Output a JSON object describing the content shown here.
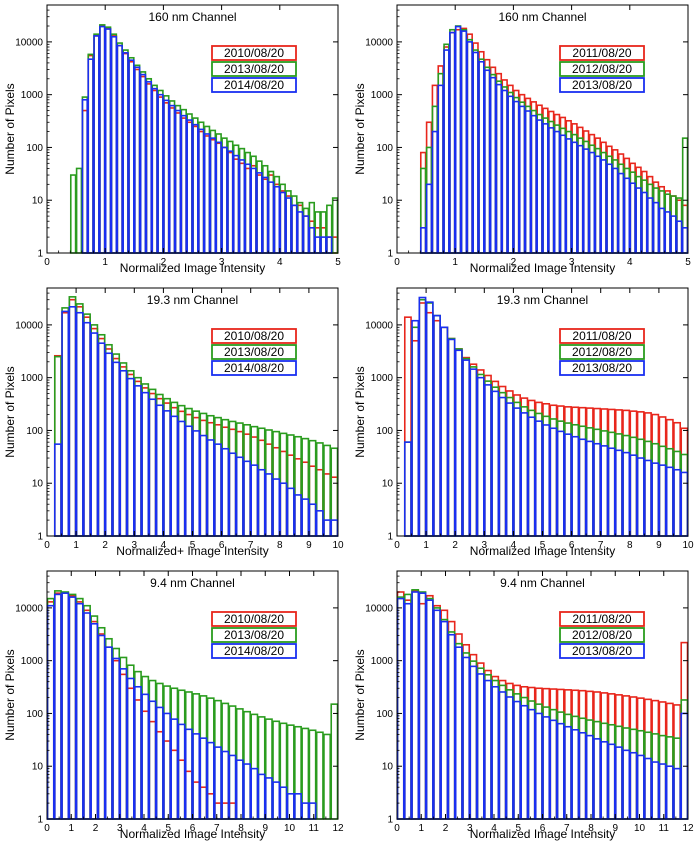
{
  "chart_data": [
    {
      "type": "bar",
      "title": "160 nm Channel",
      "xlabel": "Normalized Image Intensity",
      "ylabel": "Number of Pixels",
      "xlim": [
        0,
        5
      ],
      "ylim": [
        1,
        50000
      ],
      "y_scale": "log",
      "x_ticks": [
        "0",
        "1",
        "2",
        "3",
        "4",
        "5"
      ],
      "y_ticks": [
        "1",
        "10",
        "100",
        "1000",
        "10000"
      ],
      "bin_width": 0.1,
      "x_start": 0.4,
      "legend_position": "upper-right",
      "series": [
        {
          "name": "2010/08/20",
          "color": "#e8261c",
          "values": [
            0,
            0,
            500,
            5500,
            13000,
            20000,
            18000,
            13000,
            8500,
            6000,
            4200,
            3000,
            2200,
            1600,
            1200,
            900,
            700,
            560,
            450,
            360,
            300,
            250,
            200,
            165,
            140,
            120,
            100,
            80,
            60,
            50,
            40,
            45,
            30,
            25,
            30,
            20,
            15,
            12,
            8,
            8,
            5,
            4,
            3,
            3,
            2,
            2
          ]
        },
        {
          "name": "2013/08/20",
          "color": "#2a9c1e",
          "values": [
            30,
            40,
            900,
            5800,
            14000,
            21000,
            19000,
            14000,
            9500,
            7000,
            5000,
            3600,
            2700,
            2000,
            1500,
            1200,
            950,
            760,
            620,
            520,
            430,
            360,
            300,
            250,
            210,
            180,
            150,
            130,
            110,
            95,
            80,
            68,
            55,
            45,
            35,
            28,
            20,
            15,
            12,
            9,
            7,
            9,
            6,
            6,
            8,
            11
          ]
        },
        {
          "name": "2014/08/20",
          "color": "#1a2ff0",
          "values": [
            0,
            0,
            800,
            4700,
            13000,
            19500,
            17500,
            12500,
            8500,
            6200,
            4500,
            3300,
            2400,
            1750,
            1300,
            1000,
            780,
            620,
            500,
            400,
            330,
            270,
            220,
            180,
            150,
            125,
            100,
            85,
            70,
            58,
            48,
            40,
            33,
            27,
            22,
            18,
            14,
            11,
            8,
            6,
            5,
            3,
            2,
            2,
            2,
            1
          ]
        }
      ]
    },
    {
      "type": "bar",
      "title": "160 nm Channel",
      "xlabel": "Normalized Image Intensity",
      "ylabel": "Number of Pixels",
      "xlim": [
        0,
        5
      ],
      "ylim": [
        1,
        50000
      ],
      "y_scale": "log",
      "x_ticks": [
        "0",
        "1",
        "2",
        "3",
        "4",
        "5"
      ],
      "y_ticks": [
        "1",
        "10",
        "100",
        "1000",
        "10000"
      ],
      "bin_width": 0.1,
      "x_start": 0.4,
      "legend_position": "upper-right",
      "series": [
        {
          "name": "2011/08/20",
          "color": "#e8261c",
          "values": [
            80,
            300,
            1500,
            3500,
            8000,
            15000,
            17000,
            18000,
            14000,
            9500,
            6500,
            4600,
            3300,
            2500,
            1900,
            1500,
            1200,
            1000,
            850,
            730,
            630,
            550,
            480,
            420,
            370,
            320,
            280,
            240,
            205,
            175,
            150,
            125,
            105,
            90,
            75,
            62,
            50,
            42,
            35,
            28,
            22,
            18,
            15,
            12,
            10,
            8
          ]
        },
        {
          "name": "2012/08/20",
          "color": "#2a9c1e",
          "values": [
            40,
            100,
            600,
            2500,
            9000,
            17000,
            20000,
            17000,
            11000,
            7000,
            4700,
            3300,
            2400,
            1800,
            1400,
            1100,
            880,
            720,
            600,
            500,
            420,
            360,
            310,
            265,
            230,
            200,
            175,
            150,
            130,
            110,
            95,
            80,
            68,
            58,
            48,
            40,
            34,
            28,
            24,
            20,
            17,
            15,
            13,
            12,
            11,
            150
          ]
        },
        {
          "name": "2013/08/20",
          "color": "#1a2ff0",
          "values": [
            3,
            20,
            200,
            1500,
            7000,
            15000,
            19500,
            16000,
            10000,
            6300,
            4200,
            2900,
            2100,
            1550,
            1200,
            930,
            740,
            600,
            490,
            400,
            330,
            280,
            235,
            200,
            170,
            145,
            125,
            108,
            93,
            80,
            68,
            58,
            48,
            40,
            32,
            26,
            21,
            17,
            14,
            11,
            9,
            7,
            6,
            5,
            4,
            3
          ]
        }
      ]
    },
    {
      "type": "bar",
      "title": "19.3 nm Channel",
      "xlabel": "Normalized+ Image Intensity",
      "ylabel": "Number of Pixels",
      "xlim": [
        0,
        10
      ],
      "ylim": [
        1,
        50000
      ],
      "y_scale": "log",
      "x_ticks": [
        "0",
        "1",
        "2",
        "3",
        "4",
        "5",
        "6",
        "7",
        "8",
        "9",
        "10"
      ],
      "y_ticks": [
        "1",
        "10",
        "100",
        "1000",
        "10000"
      ],
      "bin_width": 0.25,
      "x_start": 0.25,
      "legend_position": "upper-right",
      "series": [
        {
          "name": "2010/08/20",
          "color": "#e8261c",
          "values": [
            2600,
            17000,
            30000,
            22000,
            14000,
            8500,
            5500,
            3500,
            2300,
            1600,
            1150,
            850,
            640,
            500,
            400,
            330,
            270,
            230,
            200,
            175,
            155,
            140,
            128,
            115,
            105,
            95,
            85,
            75,
            65,
            55,
            47,
            40,
            34,
            29,
            25,
            21,
            18,
            15,
            13,
            11
          ]
        },
        {
          "name": "2013/08/20",
          "color": "#2a9c1e",
          "values": [
            2500,
            21000,
            34000,
            25000,
            16000,
            10000,
            6500,
            4200,
            2800,
            1900,
            1350,
            1000,
            760,
            600,
            480,
            400,
            340,
            295,
            260,
            232,
            210,
            190,
            175,
            160,
            148,
            138,
            128,
            118,
            110,
            102,
            95,
            88,
            82,
            76,
            70,
            64,
            58,
            52,
            46,
            40
          ]
        },
        {
          "name": "2014/08/20",
          "color": "#1a2ff0",
          "values": [
            55,
            18000,
            22000,
            17000,
            11000,
            7000,
            4500,
            2900,
            1950,
            1350,
            960,
            700,
            520,
            390,
            300,
            235,
            185,
            148,
            120,
            98,
            80,
            66,
            55,
            45,
            37,
            31,
            26,
            22,
            18,
            15,
            12,
            10,
            8,
            6,
            5,
            4,
            3,
            2,
            2,
            1
          ]
        }
      ]
    },
    {
      "type": "bar",
      "title": "19.3 nm Channel",
      "xlabel": "Normalized Image Intensity",
      "ylabel": "Number of Pixels",
      "xlim": [
        0,
        10
      ],
      "ylim": [
        1,
        50000
      ],
      "y_scale": "log",
      "x_ticks": [
        "0",
        "1",
        "2",
        "3",
        "4",
        "5",
        "6",
        "7",
        "8",
        "9",
        "10"
      ],
      "y_ticks": [
        "1",
        "10",
        "100",
        "1000",
        "10000"
      ],
      "bin_width": 0.25,
      "x_start": 0.25,
      "legend_position": "upper-right",
      "series": [
        {
          "name": "2011/08/20",
          "color": "#e8261c",
          "values": [
            14000,
            5000,
            26000,
            17000,
            12000,
            9000,
            5500,
            3500,
            2400,
            1800,
            1400,
            1100,
            850,
            680,
            560,
            470,
            410,
            370,
            340,
            320,
            300,
            290,
            280,
            275,
            270,
            265,
            260,
            255,
            250,
            245,
            240,
            232,
            225,
            215,
            200,
            180,
            160,
            140,
            110,
            80
          ]
        },
        {
          "name": "2012/08/20",
          "color": "#2a9c1e",
          "values": [
            60,
            9000,
            30000,
            26000,
            15000,
            9000,
            5500,
            3500,
            2300,
            1600,
            1150,
            860,
            660,
            520,
            420,
            340,
            280,
            240,
            210,
            185,
            165,
            150,
            138,
            128,
            120,
            112,
            105,
            98,
            92,
            86,
            80,
            74,
            68,
            62,
            56,
            50,
            45,
            40,
            35,
            30
          ]
        },
        {
          "name": "2013/08/20",
          "color": "#1a2ff0",
          "values": [
            60,
            12000,
            33000,
            27000,
            15000,
            9000,
            5300,
            3300,
            2150,
            1450,
            1000,
            730,
            550,
            420,
            330,
            265,
            215,
            178,
            150,
            127,
            110,
            96,
            85,
            76,
            68,
            62,
            56,
            51,
            46,
            42,
            38,
            34,
            30,
            27,
            24,
            22,
            20,
            18,
            16,
            14
          ]
        }
      ]
    },
    {
      "type": "bar",
      "title": "9.4 nm Channel",
      "xlabel": "Normalized Image Intensity",
      "ylabel": "Number of Pixels",
      "xlim": [
        0,
        12
      ],
      "ylim": [
        1,
        50000
      ],
      "y_scale": "log",
      "x_ticks": [
        "0",
        "1",
        "2",
        "3",
        "4",
        "5",
        "6",
        "7",
        "8",
        "9",
        "10",
        "11",
        "12"
      ],
      "y_ticks": [
        "1",
        "10",
        "100",
        "1000",
        "10000"
      ],
      "bin_width": 0.3,
      "x_start": 0.0,
      "legend_position": "upper-right",
      "series": [
        {
          "name": "2010/08/20",
          "color": "#e8261c",
          "values": [
            13000,
            19000,
            19500,
            17000,
            13000,
            9000,
            5500,
            3200,
            1800,
            1000,
            550,
            300,
            180,
            110,
            70,
            45,
            30,
            20,
            13,
            8,
            5,
            4,
            3,
            2,
            2,
            2,
            1,
            1,
            1,
            1,
            1,
            1,
            1,
            1,
            1,
            1,
            1,
            1,
            1,
            1
          ]
        },
        {
          "name": "2013/08/20",
          "color": "#2a9c1e",
          "values": [
            15000,
            21000,
            20000,
            18000,
            15000,
            11000,
            7000,
            4200,
            2600,
            1700,
            1150,
            820,
            620,
            500,
            420,
            370,
            330,
            300,
            275,
            255,
            235,
            215,
            195,
            175,
            155,
            138,
            122,
            108,
            96,
            86,
            78,
            71,
            65,
            60,
            56,
            52,
            48,
            44,
            40,
            150
          ]
        },
        {
          "name": "2014/08/20",
          "color": "#1a2ff0",
          "values": [
            11000,
            18000,
            19000,
            16000,
            12000,
            8000,
            5000,
            3000,
            1800,
            1100,
            700,
            460,
            320,
            230,
            170,
            130,
            100,
            78,
            62,
            50,
            41,
            34,
            28,
            23,
            19,
            16,
            13,
            11,
            9,
            7,
            6,
            5,
            4,
            3,
            3,
            2,
            2,
            1,
            1,
            1
          ]
        }
      ]
    },
    {
      "type": "bar",
      "title": "9.4 nm Channel",
      "xlabel": "Normalized Image Intensity",
      "ylabel": "Number of Pixels",
      "xlim": [
        0,
        12
      ],
      "ylim": [
        1,
        50000
      ],
      "y_scale": "log",
      "x_ticks": [
        "0",
        "1",
        "2",
        "3",
        "4",
        "5",
        "6",
        "7",
        "8",
        "9",
        "10",
        "11",
        "12"
      ],
      "y_ticks": [
        "1",
        "10",
        "100",
        "1000",
        "10000"
      ],
      "bin_width": 0.3,
      "x_start": 0.0,
      "legend_position": "upper-right",
      "series": [
        {
          "name": "2011/08/20",
          "color": "#e8261c",
          "values": [
            20000,
            14000,
            21000,
            12000,
            17000,
            11000,
            9000,
            5500,
            3200,
            2000,
            1300,
            900,
            650,
            500,
            420,
            370,
            340,
            320,
            310,
            300,
            295,
            290,
            285,
            280,
            275,
            270,
            262,
            255,
            245,
            235,
            225,
            215,
            205,
            195,
            185,
            175,
            165,
            155,
            145,
            2200
          ]
        },
        {
          "name": "2012/08/20",
          "color": "#2a9c1e",
          "values": [
            16000,
            18000,
            22000,
            20000,
            15000,
            10000,
            6000,
            3500,
            2100,
            1400,
            980,
            720,
            540,
            420,
            340,
            280,
            235,
            200,
            172,
            150,
            132,
            118,
            106,
            96,
            88,
            81,
            75,
            70,
            65,
            61,
            57,
            53,
            50,
            47,
            44,
            41,
            38,
            36,
            34,
            180
          ]
        },
        {
          "name": "2013/08/20",
          "color": "#1a2ff0",
          "values": [
            15000,
            12000,
            20000,
            19000,
            14000,
            9000,
            5500,
            3100,
            1800,
            1150,
            780,
            560,
            420,
            320,
            255,
            205,
            168,
            140,
            118,
            100,
            86,
            74,
            64,
            56,
            49,
            43,
            38,
            33,
            29,
            26,
            23,
            20,
            18,
            16,
            14,
            12,
            11,
            10,
            9,
            100
          ]
        }
      ]
    }
  ]
}
